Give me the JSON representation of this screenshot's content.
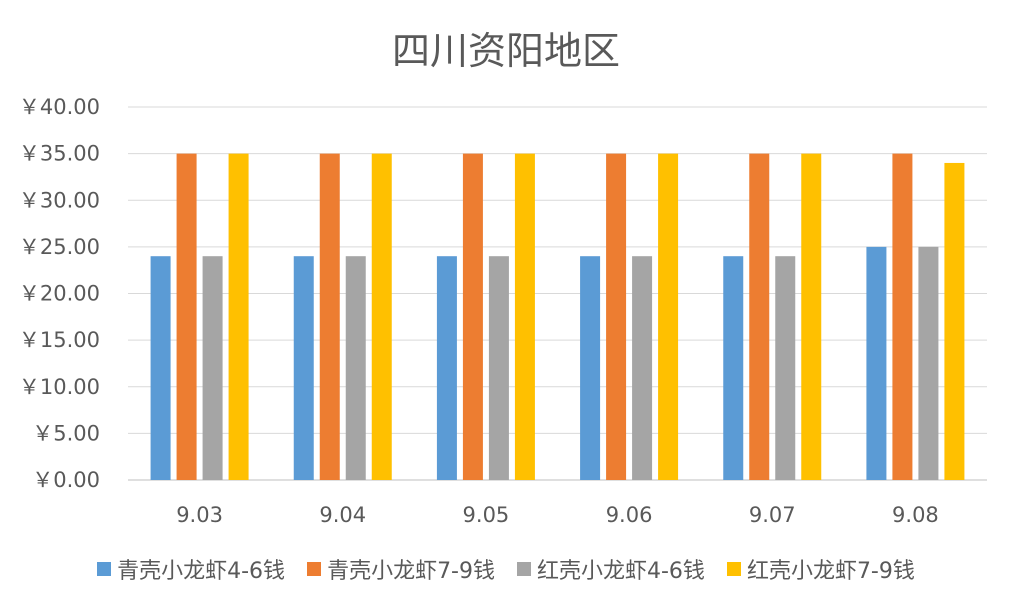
{
  "chart_data": {
    "type": "bar",
    "title": "四川资阳地区",
    "xlabel": "",
    "ylabel": "",
    "categories": [
      "9.03",
      "9.04",
      "9.05",
      "9.06",
      "9.07",
      "9.08"
    ],
    "series": [
      {
        "name": "青壳小龙虾4-6钱",
        "color": "#5B9BD5",
        "values": [
          24,
          24,
          24,
          24,
          24,
          25
        ]
      },
      {
        "name": "青壳小龙虾7-9钱",
        "color": "#ED7D31",
        "values": [
          35,
          35,
          35,
          35,
          35,
          35
        ]
      },
      {
        "name": "红壳小龙虾4-6钱",
        "color": "#A5A5A5",
        "values": [
          24,
          24,
          24,
          24,
          24,
          25
        ]
      },
      {
        "name": "红壳小龙虾7-9钱",
        "color": "#FFC000",
        "values": [
          35,
          35,
          35,
          35,
          35,
          34
        ]
      }
    ],
    "ylim": [
      0,
      40
    ],
    "ytick_step": 5,
    "ytick_labels": [
      "￥0.00",
      "￥5.00",
      "￥10.00",
      "￥15.00",
      "￥20.00",
      "￥25.00",
      "￥30.00",
      "￥35.00",
      "￥40.00"
    ],
    "grid": true,
    "legend_position": "bottom"
  }
}
